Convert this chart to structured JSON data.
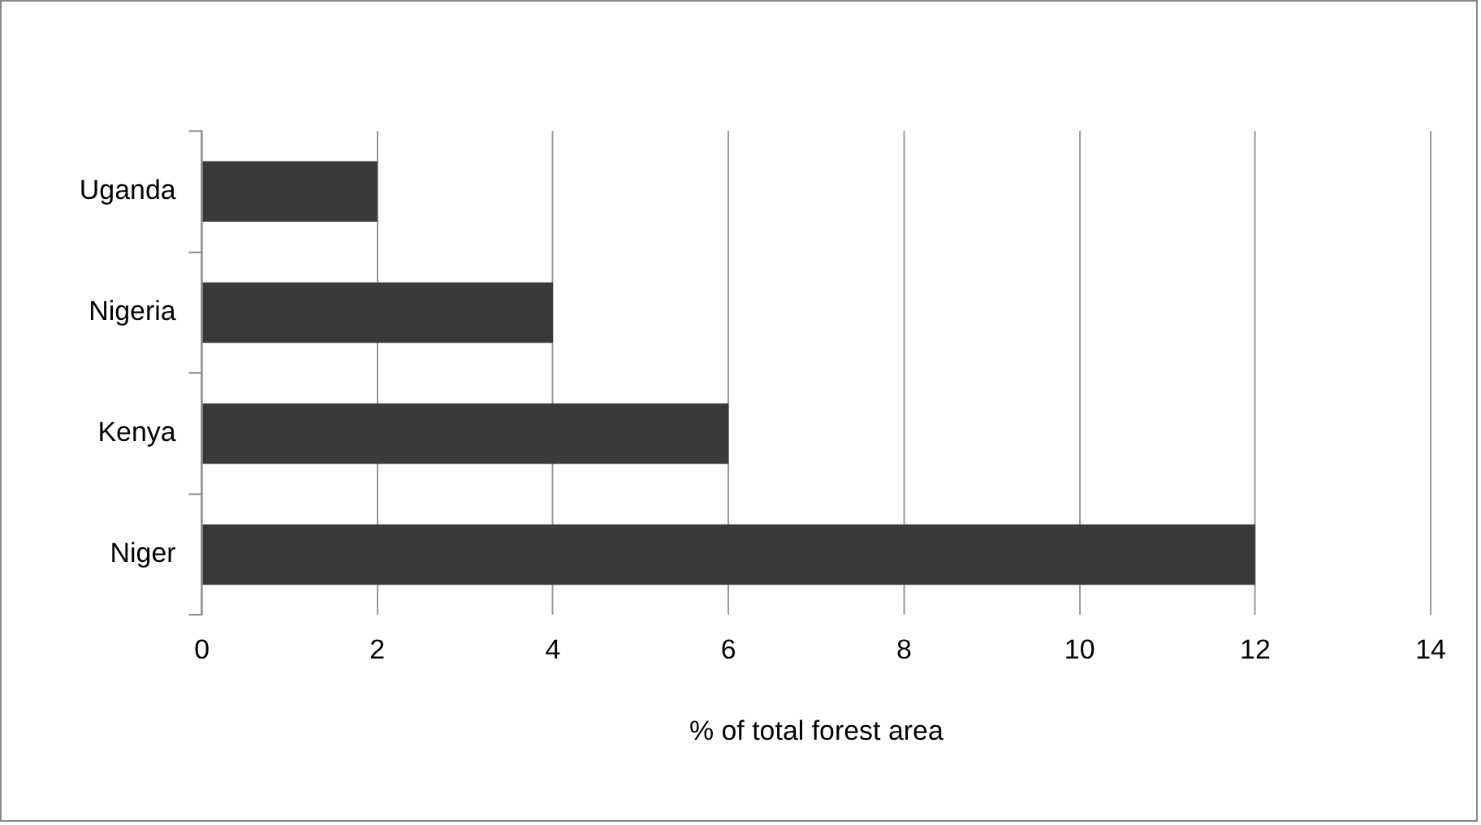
{
  "chart_data": {
    "type": "bar",
    "orientation": "horizontal",
    "categories": [
      "Uganda",
      "Nigeria",
      "Kenya",
      "Niger"
    ],
    "values": [
      2,
      4,
      6,
      12
    ],
    "color": "#3a3a3a",
    "xlim": [
      0,
      14
    ],
    "xticks": [
      0,
      2,
      4,
      6,
      8,
      10,
      12,
      14
    ],
    "xlabel": "% of total forest area",
    "grid": "x"
  }
}
